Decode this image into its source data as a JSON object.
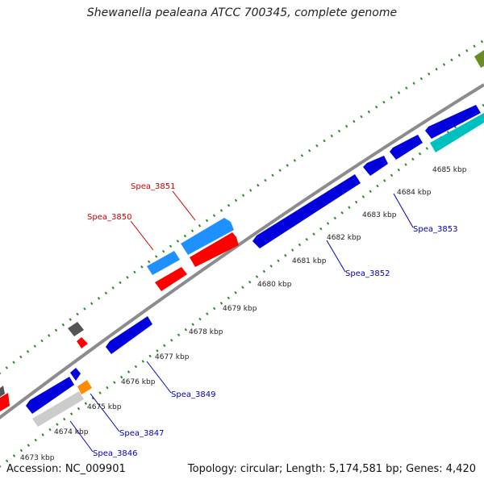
{
  "title": "Shewanella pealeana ATCC 700345, complete genome",
  "footer": {
    "accession": "Accession: NC_009901",
    "genome_info": "Topology: circular; Length: 5,174,581 bp; Genes: 4,420"
  },
  "colors": {
    "backbone": "#8c8c8c",
    "gc_dots": "#2a8a2a",
    "label_forward": "#cc0000",
    "label_reverse": "#0000bb",
    "connector_forward": "#cc0000",
    "connector_reverse": "#0000bb"
  },
  "position_ticks": [
    {
      "label": "4673 kbp"
    },
    {
      "label": "4674 kbp"
    },
    {
      "label": "4675 kbp"
    },
    {
      "label": "4676 kbp"
    },
    {
      "label": "4677 kbp"
    },
    {
      "label": "4678 kbp"
    },
    {
      "label": "4679 kbp"
    },
    {
      "label": "4680 kbp"
    },
    {
      "label": "4681 kbp"
    },
    {
      "label": "4682 kbp"
    },
    {
      "label": "4683 kbp"
    },
    {
      "label": "4684 kbp"
    },
    {
      "label": "4685 kbp"
    }
  ],
  "gene_labels": [
    {
      "name": "Spea_3851",
      "strand": "forward"
    },
    {
      "name": "Spea_3850",
      "strand": "forward"
    },
    {
      "name": "Spea_3853",
      "strand": "reverse"
    },
    {
      "name": "Spea_3852",
      "strand": "reverse"
    },
    {
      "name": "Spea_3849",
      "strand": "reverse"
    },
    {
      "name": "Spea_3847",
      "strand": "reverse"
    },
    {
      "name": "Spea_3846",
      "strand": "reverse"
    }
  ],
  "features": [
    {
      "color": "#1e90ff",
      "strand": "forward",
      "semantic": "cyan"
    },
    {
      "color": "#1e90ff",
      "strand": "forward",
      "semantic": "cyan"
    },
    {
      "color": "#ff0000",
      "strand": "forward",
      "semantic": "red"
    },
    {
      "color": "#ff0000",
      "strand": "forward",
      "semantic": "red"
    },
    {
      "color": "#0000dd",
      "strand": "reverse",
      "semantic": "blue"
    },
    {
      "color": "#0000dd",
      "strand": "reverse",
      "semantic": "blue"
    },
    {
      "color": "#0000dd",
      "strand": "reverse",
      "semantic": "blue"
    },
    {
      "color": "#0000dd",
      "strand": "reverse",
      "semantic": "blue"
    },
    {
      "color": "#0000dd",
      "strand": "reverse",
      "semantic": "blue"
    },
    {
      "color": "#0000dd",
      "strand": "reverse",
      "semantic": "blue"
    },
    {
      "color": "#0000dd",
      "strand": "reverse",
      "semantic": "blue"
    },
    {
      "color": "#00bfbf",
      "strand": "reverse",
      "semantic": "teal"
    },
    {
      "color": "#cccccc",
      "strand": "reverse",
      "semantic": "gray"
    },
    {
      "color": "#ff8c00",
      "strand": "reverse",
      "semantic": "orange"
    },
    {
      "color": "#555555",
      "strand": "forward",
      "semantic": "darkgray"
    },
    {
      "color": "#6b8e23",
      "strand": "forward",
      "semantic": "olive"
    },
    {
      "color": "#ff0000",
      "strand": "forward",
      "semantic": "red-small"
    }
  ]
}
